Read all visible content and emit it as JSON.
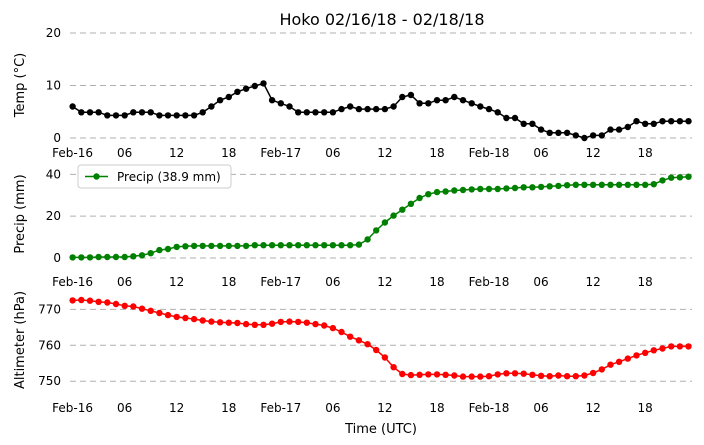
{
  "chart_data": {
    "type": "line",
    "title": "Hoko 02/16/18 - 02/18/18",
    "xlabel": "Time (UTC)",
    "x_tick_labels": [
      "Feb-16",
      "06",
      "12",
      "18",
      "Feb-17",
      "06",
      "12",
      "18",
      "Feb-18",
      "06",
      "12",
      "18"
    ],
    "x_hours": [
      0,
      1,
      2,
      3,
      4,
      5,
      6,
      7,
      8,
      9,
      10,
      11,
      12,
      13,
      14,
      15,
      16,
      17,
      18,
      19,
      20,
      21,
      22,
      23,
      24,
      25,
      26,
      27,
      28,
      29,
      30,
      31,
      32,
      33,
      34,
      35,
      36,
      37,
      38,
      39,
      40,
      41,
      42,
      43,
      44,
      45,
      46,
      47,
      48,
      49,
      50,
      51,
      52,
      53,
      54,
      55,
      56,
      57,
      58,
      59,
      60,
      61,
      62,
      63,
      64,
      65,
      66,
      67,
      68,
      69,
      70,
      71
    ],
    "grid": "horizontal dashed",
    "panels": [
      {
        "ylabel": "Temp (°C)",
        "ylim": [
          0,
          20
        ],
        "yticks": [
          0,
          10,
          20
        ],
        "series": [
          {
            "color": "#000000",
            "values": [
              6.0,
              4.9,
              4.9,
              4.9,
              4.3,
              4.3,
              4.3,
              4.9,
              4.9,
              4.9,
              4.3,
              4.3,
              4.3,
              4.3,
              4.3,
              4.9,
              6.0,
              7.2,
              7.8,
              8.8,
              9.4,
              9.9,
              10.4,
              7.2,
              6.6,
              6.0,
              4.9,
              4.9,
              4.9,
              4.9,
              4.9,
              5.5,
              6.0,
              5.5,
              5.5,
              5.5,
              5.5,
              6.0,
              7.8,
              8.2,
              6.6,
              6.6,
              7.2,
              7.2,
              7.8,
              7.2,
              6.6,
              6.0,
              5.5,
              4.9,
              3.8,
              3.8,
              2.7,
              2.7,
              1.6,
              1.0,
              1.0,
              1.0,
              0.5,
              0.0,
              0.5,
              0.5,
              1.6,
              1.6,
              2.1,
              3.2,
              2.7,
              2.7,
              3.2,
              3.2,
              3.2,
              3.2
            ]
          }
        ]
      },
      {
        "ylabel": "Precip (mm)",
        "ylim": [
          0,
          44
        ],
        "yticks": [
          0,
          20,
          40
        ],
        "legend": {
          "placement": "upper-left",
          "label": "Precip (38.9 mm)"
        },
        "series": [
          {
            "name": "Precip (38.9 mm)",
            "color": "#008000",
            "values": [
              0.3,
              0.3,
              0.3,
              0.5,
              0.5,
              0.5,
              0.5,
              0.8,
              1.3,
              2.3,
              3.8,
              4.3,
              5.3,
              5.6,
              5.8,
              5.8,
              5.8,
              5.8,
              5.8,
              5.8,
              5.8,
              6.1,
              6.1,
              6.1,
              6.1,
              6.1,
              6.1,
              6.1,
              6.1,
              6.1,
              6.1,
              6.1,
              6.1,
              6.4,
              8.9,
              13.2,
              17.0,
              20.3,
              23.1,
              25.9,
              28.7,
              30.5,
              31.5,
              31.8,
              32.3,
              32.5,
              32.8,
              33.0,
              33.0,
              33.0,
              33.3,
              33.5,
              33.8,
              33.8,
              34.0,
              34.3,
              34.5,
              34.8,
              35.0,
              35.0,
              35.0,
              35.0,
              35.0,
              35.0,
              35.0,
              35.0,
              35.0,
              35.3,
              37.1,
              38.4,
              38.6,
              38.9
            ]
          }
        ]
      },
      {
        "ylabel": "Altimeter (hPa)",
        "ylim": [
          747,
          774
        ],
        "yticks": [
          750,
          760,
          770
        ],
        "series": [
          {
            "color": "#ff0000",
            "values": [
              772.5,
              772.6,
              772.4,
              772.1,
              771.9,
              771.5,
              771.0,
              770.8,
              770.2,
              769.6,
              769.0,
              768.4,
              767.9,
              767.6,
              767.3,
              766.9,
              766.6,
              766.4,
              766.3,
              766.2,
              765.9,
              765.7,
              765.7,
              766.0,
              766.5,
              766.6,
              766.5,
              766.3,
              765.9,
              765.5,
              764.8,
              763.7,
              762.4,
              761.4,
              760.3,
              758.7,
              756.6,
              753.9,
              752.0,
              751.7,
              751.8,
              751.9,
              751.9,
              751.8,
              751.6,
              751.3,
              751.3,
              751.3,
              751.4,
              751.9,
              752.2,
              752.2,
              752.1,
              751.8,
              751.5,
              751.4,
              751.6,
              751.4,
              751.4,
              751.6,
              752.3,
              753.3,
              754.6,
              755.4,
              756.3,
              757.2,
              757.9,
              758.6,
              759.1,
              759.7,
              759.7,
              759.7
            ]
          }
        ]
      }
    ]
  }
}
